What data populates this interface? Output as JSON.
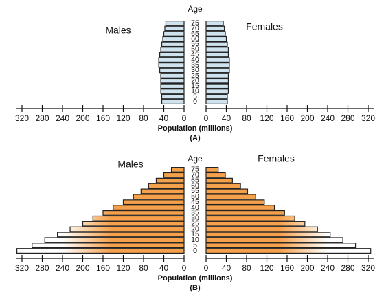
{
  "chart_data": [
    {
      "type": "pyramid",
      "caption": "(A)",
      "y_label": "Age",
      "x_label": "Population (millions)",
      "categories": [
        "0",
        "5",
        "10",
        "15",
        "20",
        "25",
        "30",
        "35",
        "40",
        "45",
        "50",
        "55",
        "60",
        "65",
        "70",
        "75"
      ],
      "series": [
        {
          "name": "Males",
          "color": "#cfe3ee",
          "values": [
            44,
            44,
            46,
            46,
            46,
            46,
            48,
            50,
            50,
            48,
            46,
            44,
            42,
            40,
            38,
            36
          ]
        },
        {
          "name": "Females",
          "color": "#cfe3ee",
          "values": [
            42,
            42,
            44,
            44,
            44,
            44,
            46,
            46,
            46,
            44,
            44,
            42,
            40,
            38,
            36,
            34
          ]
        }
      ],
      "xlim": [
        0,
        320
      ],
      "xticks": [
        0,
        40,
        80,
        120,
        160,
        200,
        240,
        280,
        320
      ],
      "fill_style": "solid"
    },
    {
      "type": "pyramid",
      "caption": "(B)",
      "y_label": "Age",
      "x_label": "Population (millions)",
      "categories": [
        "0",
        "5",
        "10",
        "15",
        "20",
        "25",
        "30",
        "35",
        "40",
        "45",
        "50",
        "55",
        "60",
        "65",
        "70",
        "75"
      ],
      "series": [
        {
          "name": "Males",
          "color": "#f5a04a",
          "values": [
            330,
            300,
            275,
            250,
            225,
            200,
            180,
            160,
            140,
            120,
            100,
            85,
            70,
            55,
            40,
            25
          ]
        },
        {
          "name": "Females",
          "color": "#f5a04a",
          "values": [
            325,
            295,
            270,
            245,
            220,
            195,
            175,
            155,
            135,
            115,
            98,
            82,
            68,
            52,
            38,
            24
          ]
        }
      ],
      "xlim": [
        0,
        320
      ],
      "xticks": [
        0,
        40,
        80,
        120,
        160,
        200,
        240,
        280,
        320
      ],
      "fill_style": "gradient"
    }
  ]
}
